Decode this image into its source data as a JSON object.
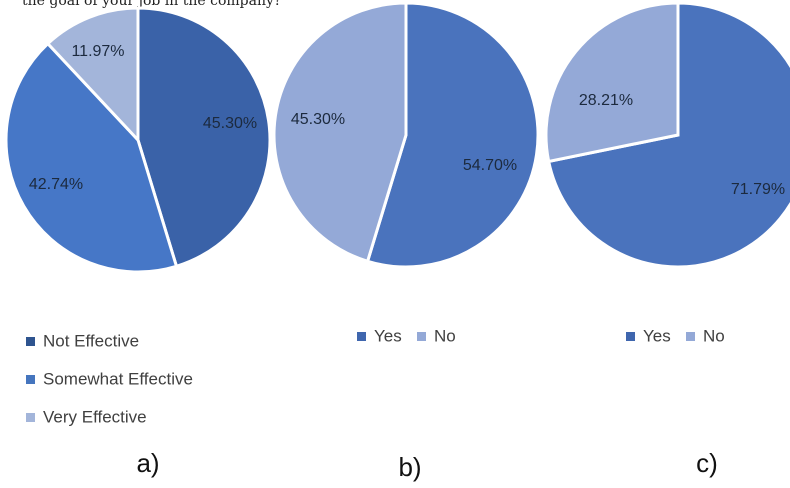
{
  "top_caption": "the goal of your job in the company?",
  "chart_data": [
    {
      "type": "pie",
      "panel_label": "a)",
      "categories": [
        "Not Effective",
        "Somewhat Effective",
        "Very Effective"
      ],
      "values": [
        45.3,
        42.74,
        11.97
      ],
      "data_labels": [
        "45.30%",
        "42.74%",
        "11.97%"
      ],
      "colors": [
        "#3A62A8",
        "#4677C7",
        "#A3B5DA"
      ],
      "legend": {
        "items": [
          "Not Effective",
          "Somewhat Effective",
          "Very Effective"
        ],
        "colors": [
          "#2E548F",
          "#4575BE",
          "#A3B5DA"
        ],
        "placement": "bottom"
      }
    },
    {
      "type": "pie",
      "panel_label": "b)",
      "categories": [
        "Yes",
        "No"
      ],
      "values": [
        54.7,
        45.3
      ],
      "data_labels": [
        "54.70%",
        "45.30%"
      ],
      "colors": [
        "#4A73BD",
        "#94A9D7"
      ],
      "legend": {
        "items": [
          "Yes",
          "No"
        ],
        "colors": [
          "#3F66AE",
          "#94A9D7"
        ],
        "placement": "bottom"
      }
    },
    {
      "type": "pie",
      "panel_label": "c)",
      "categories": [
        "Yes",
        "No"
      ],
      "values": [
        71.79,
        28.21
      ],
      "data_labels": [
        "71.79%",
        "28.21%"
      ],
      "colors": [
        "#4A73BD",
        "#94A9D7"
      ],
      "legend": {
        "items": [
          "Yes",
          "No"
        ],
        "colors": [
          "#3F66AE",
          "#94A9D7"
        ],
        "placement": "bottom"
      }
    }
  ]
}
